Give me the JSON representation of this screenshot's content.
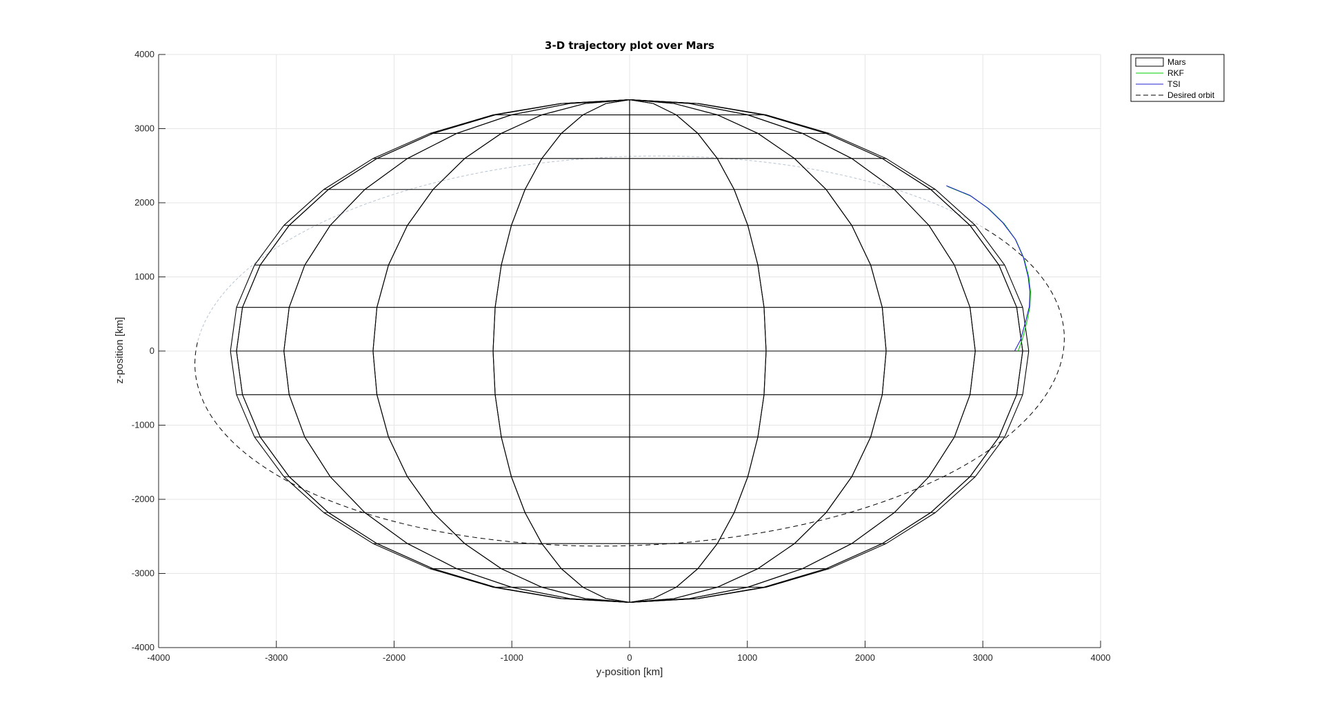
{
  "chart_data": {
    "type": "line",
    "title": "3-D trajectory plot over Mars",
    "xlabel": "y-position [km]",
    "ylabel": "z-position [km]",
    "xlim": [
      -4000,
      4000
    ],
    "ylim": [
      -4000,
      4000
    ],
    "xticks": [
      -4000,
      -3000,
      -2000,
      -1000,
      0,
      1000,
      2000,
      3000,
      4000
    ],
    "yticks": [
      -4000,
      -3000,
      -2000,
      -1000,
      0,
      1000,
      2000,
      3000,
      4000
    ],
    "grid": true,
    "legend_position": "outside-top-right",
    "mars": {
      "radius": 3390,
      "meridians_deg": [
        0,
        20,
        40,
        60,
        80,
        100,
        120,
        140,
        160,
        180,
        200,
        220,
        240,
        260,
        280,
        300,
        320,
        340
      ],
      "parallels_deg": [
        -90,
        -70,
        -60,
        -50,
        -40,
        -30,
        -20,
        -10,
        0,
        10,
        20,
        30,
        40,
        50,
        60,
        70,
        90
      ],
      "color": "#000000"
    },
    "series": [
      {
        "name": "Mars",
        "color": "#000000",
        "style": "patch"
      },
      {
        "name": "RKF",
        "color": "#00cc00",
        "style": "solid",
        "x": [
          3300,
          3340,
          3375,
          3400,
          3405,
          3390,
          3350,
          3280,
          3180,
          3050,
          2900,
          2700
        ],
        "y": [
          0,
          180,
          400,
          600,
          800,
          1000,
          1250,
          1500,
          1720,
          1920,
          2090,
          2220
        ]
      },
      {
        "name": "TSI",
        "color": "#2222cc",
        "style": "solid",
        "x": [
          3270,
          3320,
          3360,
          3395,
          3400,
          3385,
          3345,
          3275,
          3170,
          3040,
          2890,
          2690
        ],
        "y": [
          0,
          150,
          380,
          600,
          800,
          1000,
          1260,
          1510,
          1730,
          1930,
          2100,
          2230
        ]
      },
      {
        "name": "Desired orbit",
        "color": "#000000",
        "style": "dashed",
        "ellipse": {
          "center": [
            0,
            0
          ],
          "a": 3700,
          "b": 2620,
          "tilt_deg": 5.3,
          "hidden_arc_deg": [
            32,
            170
          ]
        }
      }
    ],
    "ground_track": {
      "color": "#b7c3d0",
      "style": "dotted"
    }
  }
}
